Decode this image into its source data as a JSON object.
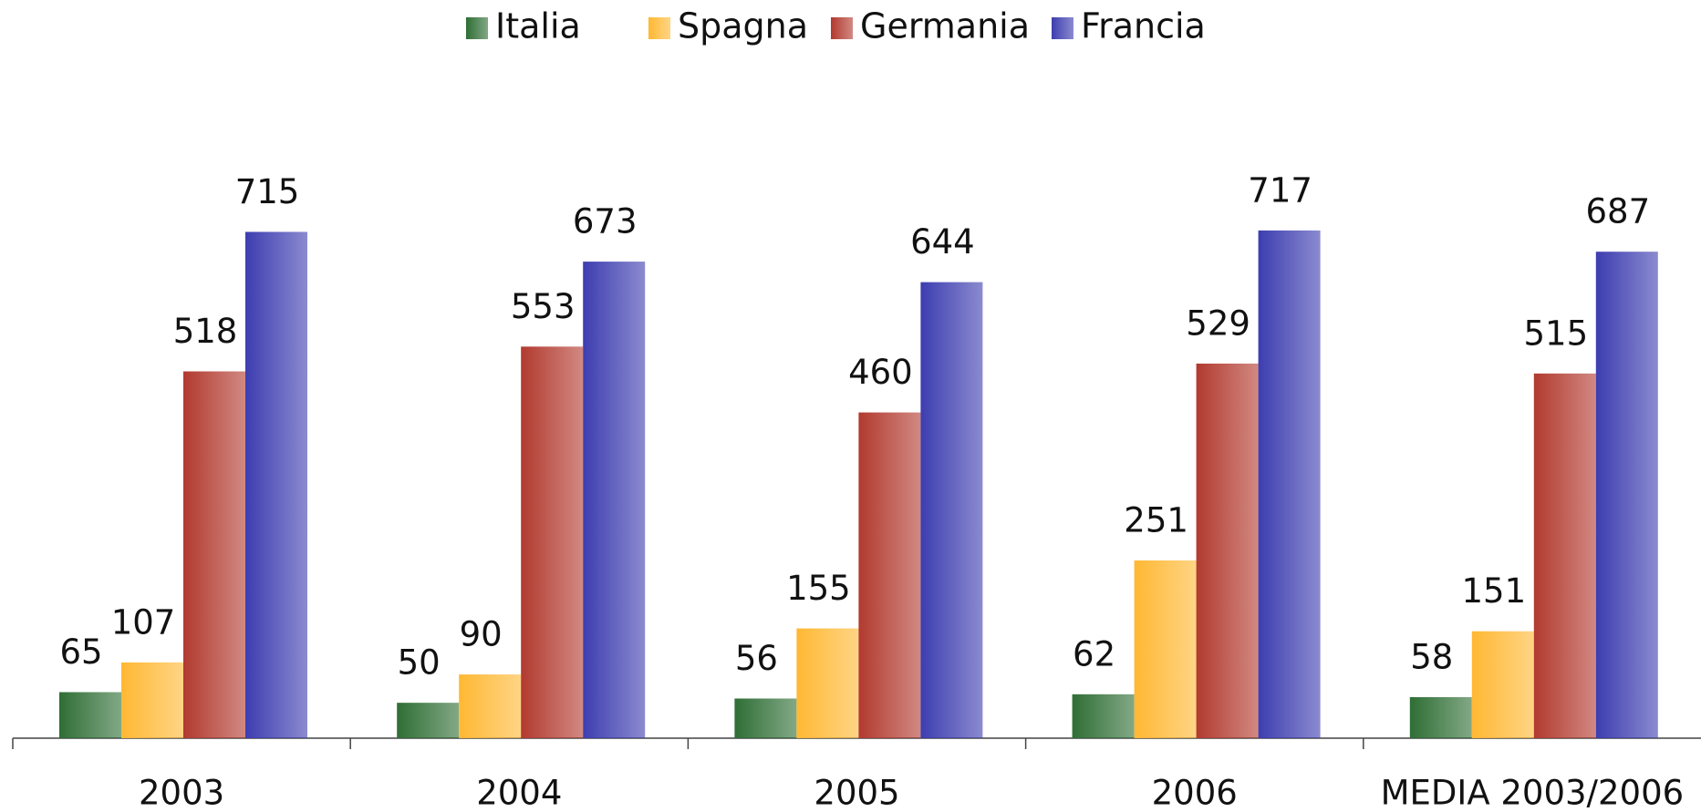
{
  "chart_data": {
    "type": "bar",
    "categories": [
      "2003",
      "2004",
      "2005",
      "2006",
      "MEDIA 2003/2006"
    ],
    "series": [
      {
        "name": "Italia",
        "color": "#2f6e35",
        "values": [
          65,
          50,
          56,
          62,
          58
        ]
      },
      {
        "name": "Spagna",
        "color": "#ffb833",
        "values": [
          107,
          90,
          155,
          251,
          151
        ]
      },
      {
        "name": "Germania",
        "color": "#b23a2f",
        "values": [
          518,
          553,
          460,
          529,
          515
        ]
      },
      {
        "name": "Francia",
        "color": "#3d3db0",
        "values": [
          715,
          673,
          644,
          717,
          687
        ]
      }
    ],
    "ylim": [
      0,
      1000
    ],
    "legend": "top"
  }
}
